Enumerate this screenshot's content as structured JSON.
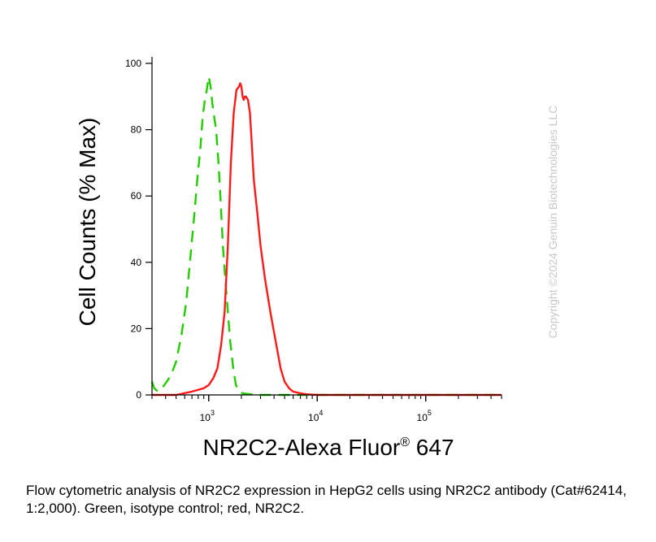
{
  "chart_data": {
    "type": "line",
    "xlabel": "NR2C2-Alexa Fluor",
    "xlabel_sup": "®",
    "xlabel_tail": " 647",
    "ylabel": "Cell Counts (% Max)",
    "x_scale": "log",
    "x_range": [
      300,
      500000
    ],
    "y_range": [
      0,
      100
    ],
    "x_major_ticks": [
      {
        "value": 1000,
        "base": "10",
        "exp": "3"
      },
      {
        "value": 10000,
        "base": "10",
        "exp": "4"
      },
      {
        "value": 100000,
        "base": "10",
        "exp": "5"
      }
    ],
    "y_ticks": [
      0,
      20,
      40,
      60,
      80,
      100
    ],
    "grid": false,
    "series": [
      {
        "color": "#22cc00",
        "dashed": true,
        "x": [
          300,
          315,
          340,
          370,
          410,
          450,
          500,
          560,
          620,
          680,
          740,
          790,
          840,
          880,
          920,
          960,
          1000,
          1040,
          1080,
          1120,
          1170,
          1230,
          1290,
          1350,
          1420,
          1500,
          1580,
          1680,
          1780,
          1900,
          2050,
          2300,
          2800,
          3500,
          5000,
          8000,
          15000,
          30000,
          60000,
          120000,
          250000,
          500000
        ],
        "y": [
          4,
          2,
          1,
          2,
          4,
          6,
          10,
          18,
          28,
          42,
          55,
          66,
          75,
          84,
          89,
          92,
          96,
          93,
          88,
          84,
          80,
          70,
          58,
          45,
          35,
          25,
          16,
          8,
          3,
          1,
          0.5,
          0.3,
          0,
          0,
          0,
          0,
          0,
          0,
          0,
          0,
          0,
          0
        ]
      },
      {
        "color": "#ff1a1a",
        "dashed": false,
        "x": [
          300,
          500,
          700,
          900,
          1000,
          1100,
          1200,
          1300,
          1400,
          1500,
          1600,
          1700,
          1800,
          1900,
          1950,
          2000,
          2050,
          2100,
          2150,
          2200,
          2300,
          2400,
          2500,
          2600,
          2800,
          3000,
          3300,
          3700,
          4200,
          4600,
          5000,
          5500,
          6000,
          7000,
          8000,
          10000,
          20000,
          50000,
          100000,
          200000,
          500000
        ],
        "y": [
          0,
          0,
          1,
          2,
          3,
          5,
          8,
          15,
          25,
          45,
          70,
          85,
          92,
          93,
          94,
          93,
          90,
          89,
          90,
          90,
          89,
          85,
          75,
          65,
          55,
          45,
          35,
          25,
          15,
          8,
          4,
          2,
          1,
          0.5,
          0.2,
          0,
          0,
          0,
          0,
          0,
          0
        ]
      }
    ]
  },
  "watermark": "Copyright ©2024 Genuin Biotechnologies LLC",
  "caption": "Flow cytometric analysis of NR2C2 expression in HepG2 cells using NR2C2 antibody (Cat#62414, 1:2,000). Green, isotype control; red, NR2C2."
}
